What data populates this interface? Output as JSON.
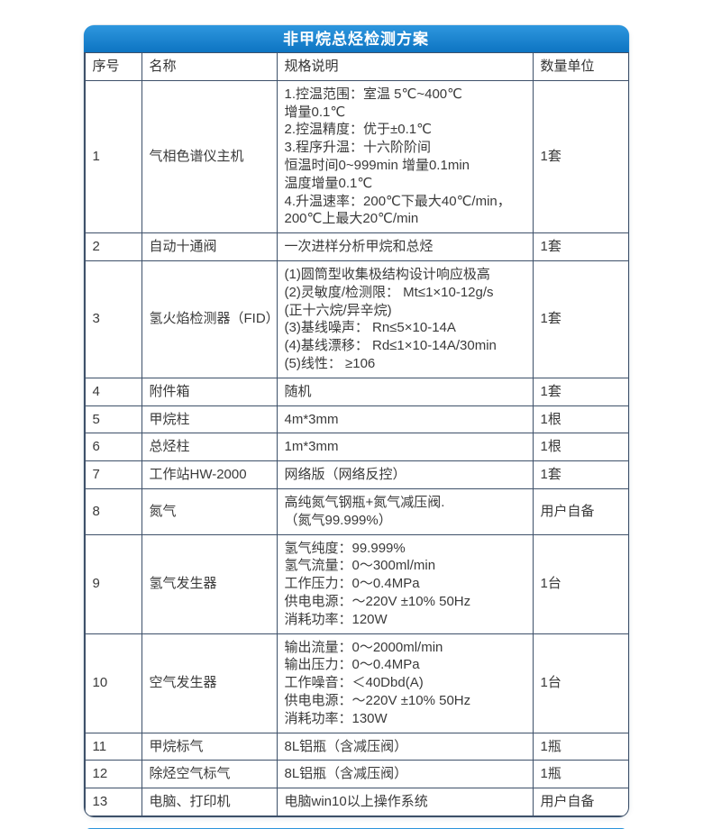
{
  "banner": {
    "title": "非甲烷总烃检测方案"
  },
  "table": {
    "headers": [
      "序号",
      "名称",
      "规格说明",
      "数量单位"
    ],
    "rows": [
      {
        "no": "1",
        "name": "气相色谱仪主机",
        "spec": [
          "1.控温范围：室温 5℃~400℃",
          "增量0.1℃",
          "2.控温精度：优于±0.1℃",
          "3.程序升温：十六阶阶间",
          "恒温时间0~999min 增量0.1min",
          "温度增量0.1℃",
          "4.升温速率：200℃下最大40℃/min，",
          " 200℃上最大20℃/min"
        ],
        "qty": "1套"
      },
      {
        "no": "2",
        "name": "自动十通阀",
        "spec": [
          "一次进样分析甲烷和总烃"
        ],
        "qty": "1套"
      },
      {
        "no": "3",
        "name": "氢火焰检测器（FID）",
        "spec": [
          "(1)圆筒型收集极结构设计响应极高",
          "(2)灵敏度/检测限： Mt≤1×10-12g/s",
          "(正十六烷/异辛烷)",
          "(3)基线噪声： Rn≤5×10-14A",
          "(4)基线漂移： Rd≤1×10-14A/30min",
          "(5)线性： ≥106"
        ],
        "qty": "1套"
      },
      {
        "no": "4",
        "name": "附件箱",
        "spec": [
          "随机"
        ],
        "qty": "1套"
      },
      {
        "no": "5",
        "name": "甲烷柱",
        "spec": [
          "4m*3mm"
        ],
        "qty": "1根"
      },
      {
        "no": "6",
        "name": "总烃柱",
        "spec": [
          "1m*3mm"
        ],
        "qty": "1根"
      },
      {
        "no": "7",
        "name": "工作站HW-2000",
        "spec": [
          "网络版（网络反控）"
        ],
        "qty": "1套"
      },
      {
        "no": "8",
        "name": "氮气",
        "spec": [
          "高纯氮气钢瓶+氮气减压阀.",
          "（氮气99.999%）"
        ],
        "qty": "用户自备"
      },
      {
        "no": "9",
        "name": "氢气发生器",
        "spec": [
          "氢气纯度：99.999%",
          "氢气流量：0～300ml/min",
          "工作压力：0～0.4MPa",
          "供电电源：～220V ±10% 50Hz",
          "消耗功率：120W"
        ],
        "qty": "1台"
      },
      {
        "no": "10",
        "name": "空气发生器",
        "spec": [
          "输出流量：0～2000ml/min",
          "输出压力：0～0.4MPa",
          "工作噪音：＜40Dbd(A)",
          "供电电源：～220V ±10% 50Hz",
          "消耗功率：130W"
        ],
        "qty": "1台"
      },
      {
        "no": "11",
        "name": "甲烷标气",
        "spec": [
          "8L铝瓶（含减压阀）"
        ],
        "qty": "1瓶"
      },
      {
        "no": "12",
        "name": "除烃空气标气",
        "spec": [
          "8L铝瓶（含减压阀）"
        ],
        "qty": "1瓶"
      },
      {
        "no": "13",
        "name": "电脑、打印机",
        "spec": [
          "电脑win10以上操作系统"
        ],
        "qty": "用户自备"
      }
    ]
  },
  "colors": {
    "banner_top": "#2e97de",
    "banner_bottom": "#0d74c2",
    "grid_border": "#3d5069",
    "text": "#3a3a3a"
  }
}
